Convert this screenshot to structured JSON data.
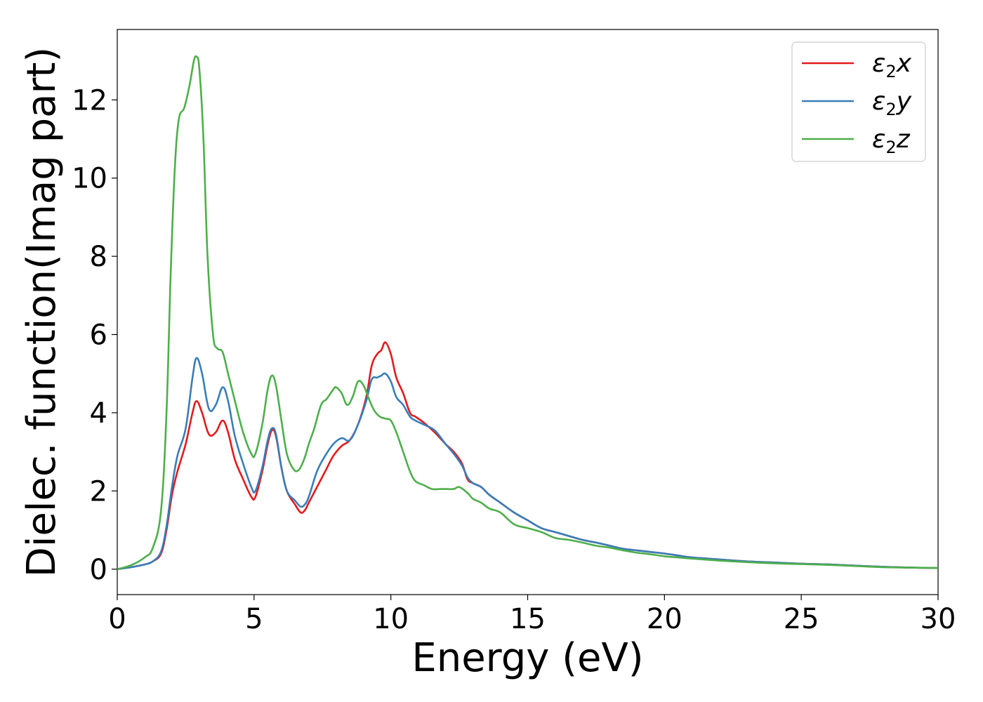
{
  "chart_data": {
    "type": "line",
    "title": "",
    "xlabel": "Energy (eV)",
    "ylabel": "Dielec. function(Imag part)",
    "xlim": [
      0,
      30
    ],
    "ylim": [
      -0.65,
      13.8
    ],
    "x_ticks": [
      0,
      5,
      10,
      15,
      20,
      25,
      30
    ],
    "x_tick_labels": [
      "0",
      "5",
      "10",
      "15",
      "20",
      "25",
      "30"
    ],
    "y_ticks": [
      0,
      2,
      4,
      6,
      8,
      10,
      12
    ],
    "y_tick_labels": [
      "0",
      "2",
      "4",
      "6",
      "8",
      "10",
      "12"
    ],
    "grid": false,
    "legend_position": "top-right",
    "series": [
      {
        "name": "ε2x",
        "name_main": "ε",
        "name_sub": "2",
        "name_tail": "x",
        "color": "#e41a1c",
        "x": [
          0,
          0.5,
          1.0,
          1.3,
          1.6,
          1.8,
          2.0,
          2.2,
          2.5,
          2.75,
          2.9,
          3.1,
          3.35,
          3.6,
          3.85,
          4.05,
          4.3,
          4.6,
          4.9,
          5.05,
          5.3,
          5.5,
          5.65,
          5.8,
          6.0,
          6.2,
          6.5,
          6.7,
          6.85,
          7.0,
          7.3,
          7.6,
          7.9,
          8.2,
          8.5,
          8.8,
          9.1,
          9.3,
          9.5,
          9.65,
          9.8,
          10.0,
          10.2,
          10.45,
          10.7,
          10.9,
          11.2,
          11.6,
          12.0,
          12.3,
          12.6,
          12.8,
          13.0,
          13.3,
          13.6,
          14.0,
          14.5,
          15.0,
          15.5,
          16.0,
          16.5,
          17.0,
          17.5,
          18.0,
          18.5,
          19.0,
          19.5,
          20.0,
          20.5,
          21.0,
          22.0,
          23.0,
          24.0,
          25.0,
          26.0,
          27.0,
          28.0,
          29.0,
          30.0
        ],
        "y": [
          0,
          0.05,
          0.12,
          0.2,
          0.4,
          1.0,
          1.9,
          2.5,
          3.2,
          4.0,
          4.3,
          4.0,
          3.45,
          3.5,
          3.8,
          3.5,
          2.8,
          2.3,
          1.85,
          1.85,
          2.5,
          3.2,
          3.55,
          3.4,
          2.6,
          2.0,
          1.65,
          1.45,
          1.5,
          1.7,
          2.1,
          2.5,
          2.9,
          3.15,
          3.3,
          3.7,
          4.4,
          5.2,
          5.5,
          5.6,
          5.8,
          5.5,
          4.9,
          4.5,
          4.0,
          3.9,
          3.75,
          3.5,
          3.2,
          3.0,
          2.7,
          2.3,
          2.2,
          2.1,
          1.9,
          1.7,
          1.45,
          1.25,
          1.05,
          0.95,
          0.85,
          0.75,
          0.68,
          0.6,
          0.52,
          0.48,
          0.44,
          0.4,
          0.35,
          0.3,
          0.25,
          0.2,
          0.17,
          0.14,
          0.12,
          0.09,
          0.06,
          0.04,
          0.03
        ]
      },
      {
        "name": "ε2y",
        "name_main": "ε",
        "name_sub": "2",
        "name_tail": "y",
        "color": "#377eb8",
        "x": [
          0,
          0.5,
          1.0,
          1.3,
          1.6,
          1.8,
          2.0,
          2.2,
          2.5,
          2.75,
          2.9,
          3.1,
          3.35,
          3.6,
          3.85,
          4.05,
          4.3,
          4.6,
          4.9,
          5.05,
          5.3,
          5.5,
          5.65,
          5.8,
          6.0,
          6.2,
          6.5,
          6.7,
          6.85,
          7.0,
          7.3,
          7.6,
          7.9,
          8.2,
          8.5,
          8.8,
          9.1,
          9.3,
          9.5,
          9.65,
          9.8,
          10.0,
          10.2,
          10.45,
          10.7,
          10.9,
          11.2,
          11.6,
          12.0,
          12.3,
          12.6,
          12.8,
          13.0,
          13.3,
          13.6,
          14.0,
          14.5,
          15.0,
          15.5,
          16.0,
          16.5,
          17.0,
          17.5,
          18.0,
          18.5,
          19.0,
          19.5,
          20.0,
          20.5,
          21.0,
          22.0,
          23.0,
          24.0,
          25.0,
          26.0,
          27.0,
          28.0,
          29.0,
          30.0
        ],
        "y": [
          0,
          0.05,
          0.12,
          0.2,
          0.45,
          1.1,
          2.1,
          2.9,
          3.6,
          4.9,
          5.4,
          5.0,
          4.1,
          4.2,
          4.65,
          4.3,
          3.4,
          2.7,
          2.1,
          2.0,
          2.6,
          3.3,
          3.6,
          3.45,
          2.6,
          2.0,
          1.75,
          1.6,
          1.65,
          1.85,
          2.5,
          2.9,
          3.2,
          3.35,
          3.3,
          3.7,
          4.3,
          4.85,
          4.9,
          4.95,
          5.0,
          4.8,
          4.4,
          4.2,
          3.9,
          3.8,
          3.7,
          3.55,
          3.2,
          2.95,
          2.65,
          2.35,
          2.2,
          2.1,
          1.9,
          1.7,
          1.45,
          1.25,
          1.05,
          0.95,
          0.85,
          0.75,
          0.68,
          0.6,
          0.52,
          0.48,
          0.44,
          0.4,
          0.35,
          0.3,
          0.25,
          0.2,
          0.17,
          0.14,
          0.12,
          0.09,
          0.06,
          0.04,
          0.03
        ]
      },
      {
        "name": "ε2z",
        "name_main": "ε",
        "name_sub": "2",
        "name_tail": "z",
        "color": "#4daf4a",
        "x": [
          0,
          0.5,
          1.0,
          1.3,
          1.6,
          1.8,
          1.95,
          2.1,
          2.25,
          2.45,
          2.65,
          2.8,
          2.9,
          3.0,
          3.15,
          3.3,
          3.5,
          3.65,
          3.85,
          4.05,
          4.3,
          4.6,
          4.9,
          5.05,
          5.3,
          5.5,
          5.65,
          5.8,
          6.0,
          6.2,
          6.45,
          6.65,
          6.85,
          7.0,
          7.2,
          7.45,
          7.65,
          7.9,
          8.0,
          8.2,
          8.4,
          8.6,
          8.8,
          9.0,
          9.2,
          9.4,
          9.6,
          9.8,
          10.0,
          10.2,
          10.45,
          10.7,
          10.9,
          11.2,
          11.5,
          11.8,
          12.0,
          12.3,
          12.5,
          12.8,
          13.0,
          13.3,
          13.6,
          14.0,
          14.5,
          15.0,
          15.5,
          16.0,
          16.5,
          17.0,
          17.5,
          18.0,
          18.5,
          19.0,
          19.5,
          20.0,
          20.5,
          21.0,
          22.0,
          23.0,
          24.0,
          25.0,
          26.0,
          27.0,
          28.0,
          29.0,
          30.0
        ],
        "y": [
          0,
          0.1,
          0.3,
          0.55,
          1.5,
          4.0,
          7.5,
          10.2,
          11.5,
          11.8,
          12.4,
          13.0,
          13.1,
          12.8,
          11.0,
          8.0,
          6.0,
          5.65,
          5.55,
          5.0,
          4.3,
          3.5,
          2.95,
          2.95,
          3.7,
          4.6,
          4.95,
          4.7,
          3.8,
          2.95,
          2.55,
          2.55,
          2.85,
          3.2,
          3.6,
          4.2,
          4.35,
          4.6,
          4.65,
          4.5,
          4.2,
          4.4,
          4.8,
          4.7,
          4.35,
          4.05,
          3.9,
          3.85,
          3.8,
          3.5,
          3.0,
          2.5,
          2.25,
          2.15,
          2.05,
          2.05,
          2.05,
          2.05,
          2.1,
          1.95,
          1.8,
          1.7,
          1.55,
          1.45,
          1.15,
          1.05,
          0.95,
          0.8,
          0.75,
          0.68,
          0.6,
          0.55,
          0.48,
          0.42,
          0.38,
          0.33,
          0.3,
          0.27,
          0.22,
          0.18,
          0.15,
          0.13,
          0.11,
          0.08,
          0.05,
          0.04,
          0.03
        ]
      }
    ]
  }
}
